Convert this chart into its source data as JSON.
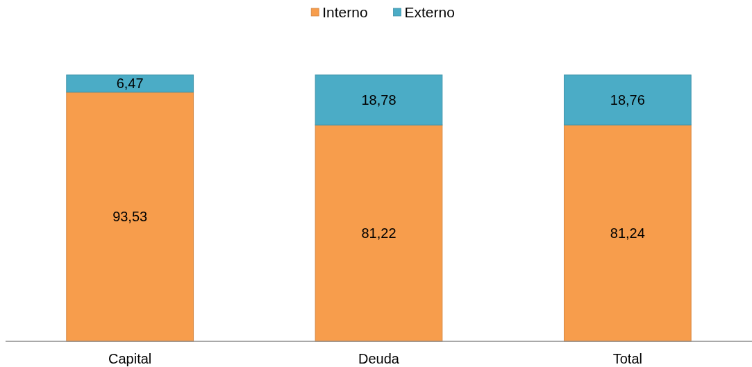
{
  "chart_data": {
    "type": "bar",
    "stacked": true,
    "categories": [
      "Capital",
      "Deuda",
      "Total"
    ],
    "series": [
      {
        "name": "Interno",
        "color": "#f79d4c",
        "values": [
          93.53,
          81.22,
          81.24
        ],
        "value_labels": [
          "93,53",
          "81,22",
          "81,24"
        ]
      },
      {
        "name": "Externo",
        "color": "#4bacc6",
        "values": [
          6.47,
          18.78,
          18.76
        ],
        "value_labels": [
          "6,47",
          "18,78",
          "18,76"
        ]
      }
    ],
    "legend": "top"
  }
}
